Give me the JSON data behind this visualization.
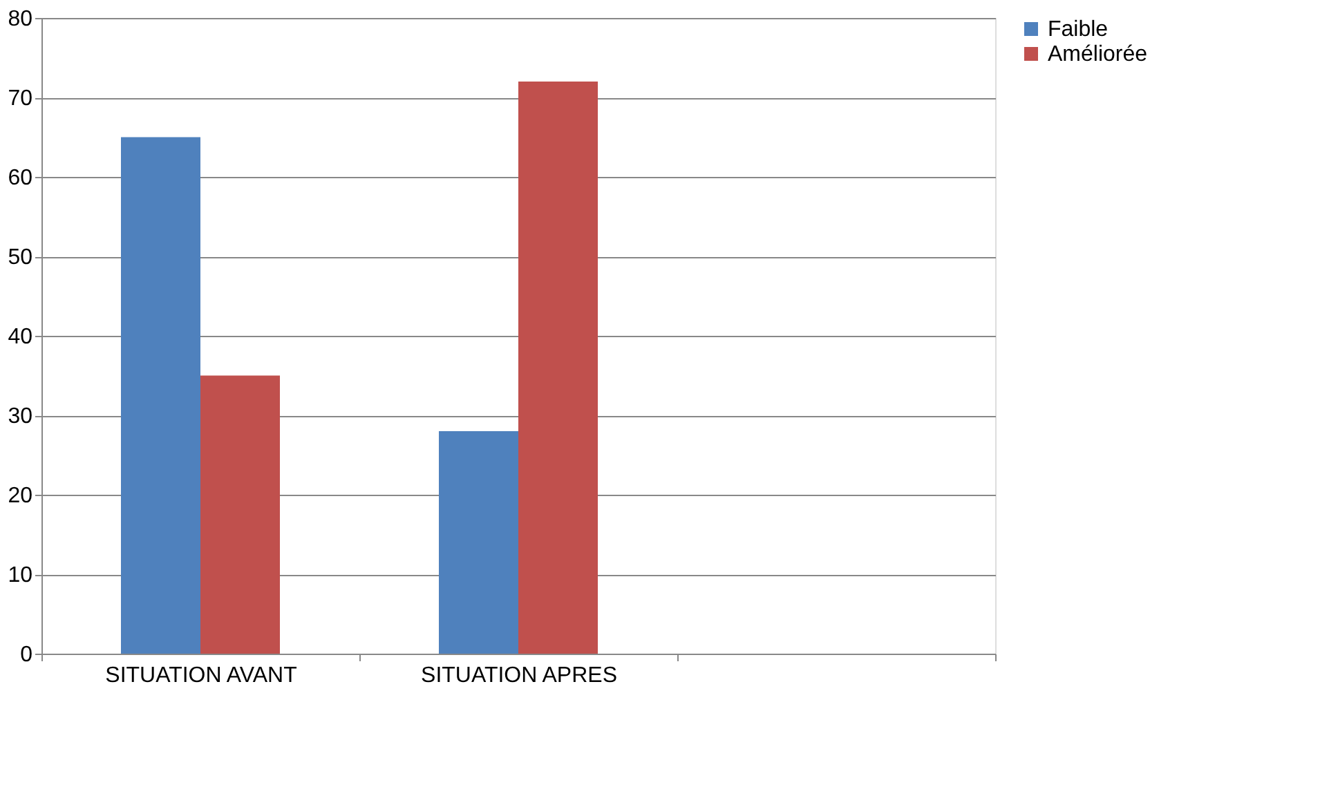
{
  "chart_data": {
    "type": "bar",
    "categories": [
      "SITUATION AVANT",
      "SITUATION APRES",
      null
    ],
    "series": [
      {
        "name": "Faible",
        "color": "#4f81bd",
        "values": [
          65,
          28,
          null
        ]
      },
      {
        "name": "Améliorée",
        "color": "#c0504d",
        "values": [
          35,
          72,
          null
        ]
      }
    ],
    "ylim": [
      0,
      80
    ],
    "yticks": [
      0,
      10,
      20,
      30,
      40,
      50,
      60,
      70,
      80
    ],
    "grid": "y",
    "legend": "right"
  }
}
